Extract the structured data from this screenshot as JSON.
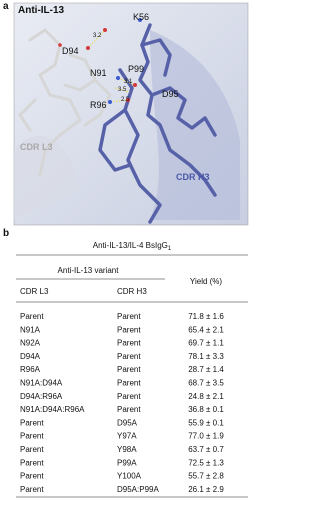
{
  "panel_a": {
    "label": "a",
    "title": "Anti-IL-13",
    "residues": [
      "K56",
      "D94",
      "N91",
      "P99",
      "D95",
      "R96"
    ],
    "distances": [
      "3.2",
      "3.1",
      "3.5",
      "2.5"
    ],
    "cdr_l3": "CDR L3",
    "cdr_h3": "CDR H3"
  },
  "panel_b": {
    "label": "b",
    "title": "Anti-IL-13/IL-4 BsIgG",
    "title_subscript": "1",
    "table": {
      "group_header": "Anti-IL-13 variant",
      "headers": [
        "CDR L3",
        "CDR H3",
        "Yield (%)"
      ],
      "rows": [
        [
          "Parent",
          "Parent",
          "71.8 ± 1.6"
        ],
        [
          "N91A",
          "Parent",
          "65.4 ± 2.1"
        ],
        [
          "N92A",
          "Parent",
          "69.7 ± 1.1"
        ],
        [
          "D94A",
          "Parent",
          "78.1 ± 3.3"
        ],
        [
          "R96A",
          "Parent",
          "28.7 ± 1.4"
        ],
        [
          "N91A:D94A",
          "Parent",
          "68.7 ± 3.5"
        ],
        [
          "D94A:R96A",
          "Parent",
          "24.8 ± 2.1"
        ],
        [
          "N91A:D94A:R96A",
          "Parent",
          "36.8 ± 0.1"
        ],
        [
          "Parent",
          "D95A",
          "55.9 ± 0.1"
        ],
        [
          "Parent",
          "Y97A",
          "77.0 ± 1.9"
        ],
        [
          "Parent",
          "Y98A",
          "63.7 ± 0.7"
        ],
        [
          "Parent",
          "P99A",
          "72.5 ± 1.3"
        ],
        [
          "Parent",
          "Y100A",
          "55.7 ± 2.8"
        ],
        [
          "Parent",
          "D95A:P99A",
          "26.1 ± 2.9"
        ]
      ]
    }
  }
}
